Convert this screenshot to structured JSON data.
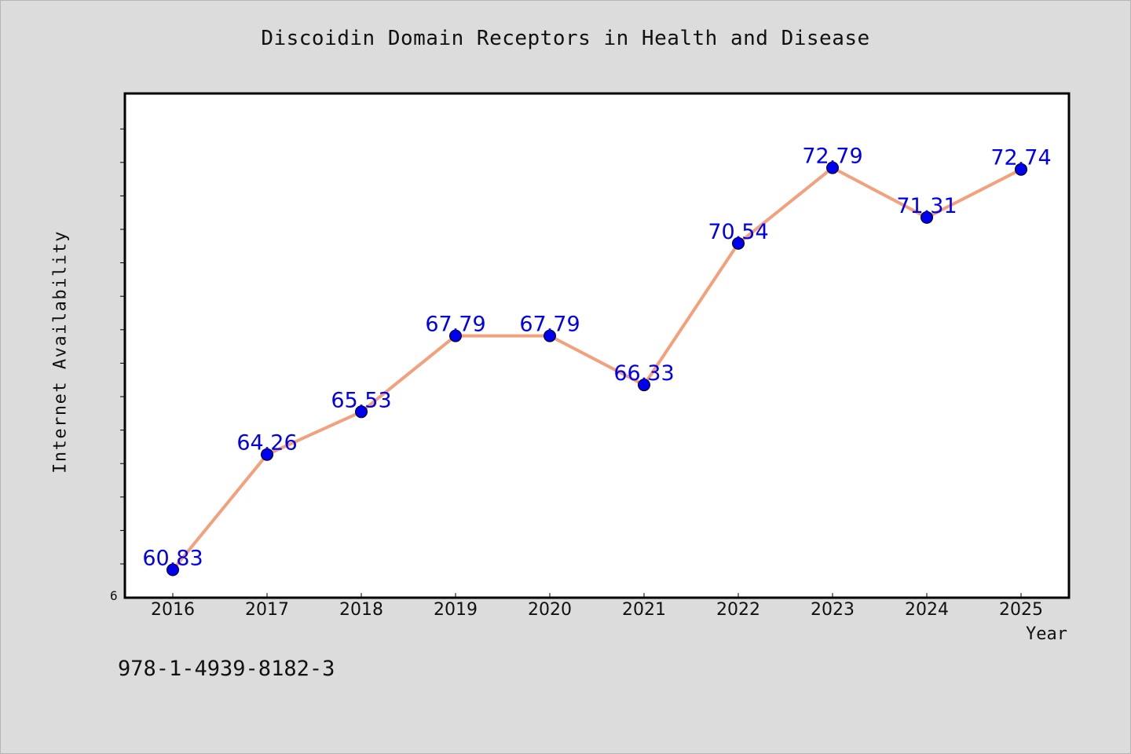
{
  "chart_data": {
    "type": "line",
    "title": "Discoidin Domain Receptors in Health and Disease",
    "xlabel": "Year",
    "ylabel": "Internet Availability",
    "categories": [
      "2016",
      "2017",
      "2018",
      "2019",
      "2020",
      "2021",
      "2022",
      "2023",
      "2024",
      "2025"
    ],
    "series": [
      {
        "values": [
          60.83,
          64.26,
          65.53,
          67.79,
          67.79,
          66.33,
          70.54,
          72.79,
          71.31,
          72.74
        ],
        "data_labels": [
          "60.83",
          "64.26",
          "65.53",
          "67.79",
          "67.79",
          "66.33",
          "70.54",
          "72.79",
          "71.31",
          "72.74"
        ],
        "line_color": "#f4a07c",
        "marker_color": "#0000ee"
      }
    ],
    "ylim": [
      60.0,
      75.0
    ],
    "y_tick_label": "6",
    "label_color": "#0000ee",
    "grid": false,
    "legend": "none"
  },
  "footnote": "978-1-4939-8182-3"
}
